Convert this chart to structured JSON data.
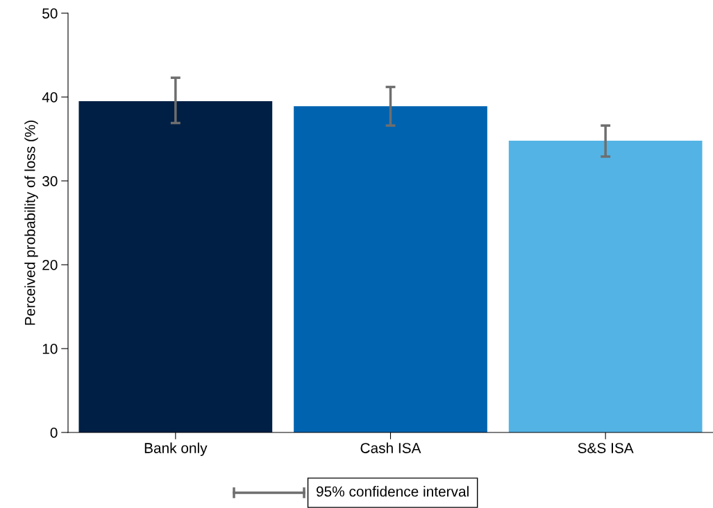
{
  "chart_data": {
    "type": "bar",
    "ylabel": "Perceived probability of loss (%)",
    "categories": [
      "Bank only",
      "Cash ISA",
      "S&S ISA"
    ],
    "values": [
      39.5,
      38.9,
      34.8
    ],
    "colors": [
      "#001f45",
      "#0063b0",
      "#53b3e4"
    ],
    "errors": [
      [
        36.9,
        42.3
      ],
      [
        36.6,
        41.2
      ],
      [
        32.9,
        36.6
      ]
    ],
    "annotations": [
      "95% confidence interval"
    ],
    "ylim": [
      0,
      50
    ],
    "yticks": [
      0,
      10,
      20,
      30,
      40,
      50
    ],
    "grid": false
  }
}
